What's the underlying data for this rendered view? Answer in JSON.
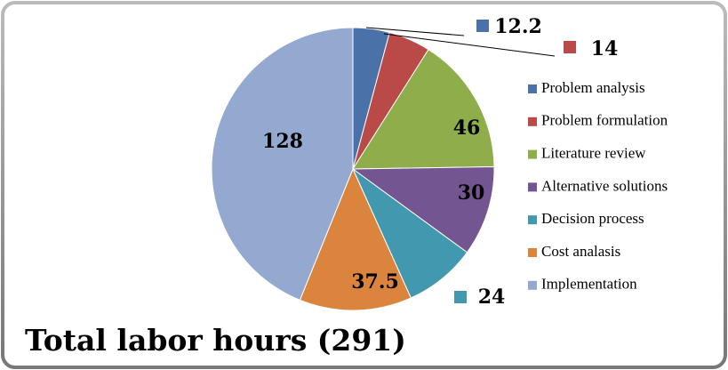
{
  "chart_data": {
    "type": "pie",
    "title": "Total labor hours (291)",
    "categories": [
      "Problem analysis",
      "Problem formulation",
      "Literature review",
      "Alternative solutions",
      "Decision process",
      "Cost analasis",
      "Implementation"
    ],
    "values": [
      12.2,
      14,
      46,
      30,
      24,
      37.5,
      128
    ],
    "colors": [
      "#4a72a8",
      "#b94a48",
      "#8fad4b",
      "#735691",
      "#4198af",
      "#db843d",
      "#93a9cf"
    ],
    "legend": "right"
  }
}
